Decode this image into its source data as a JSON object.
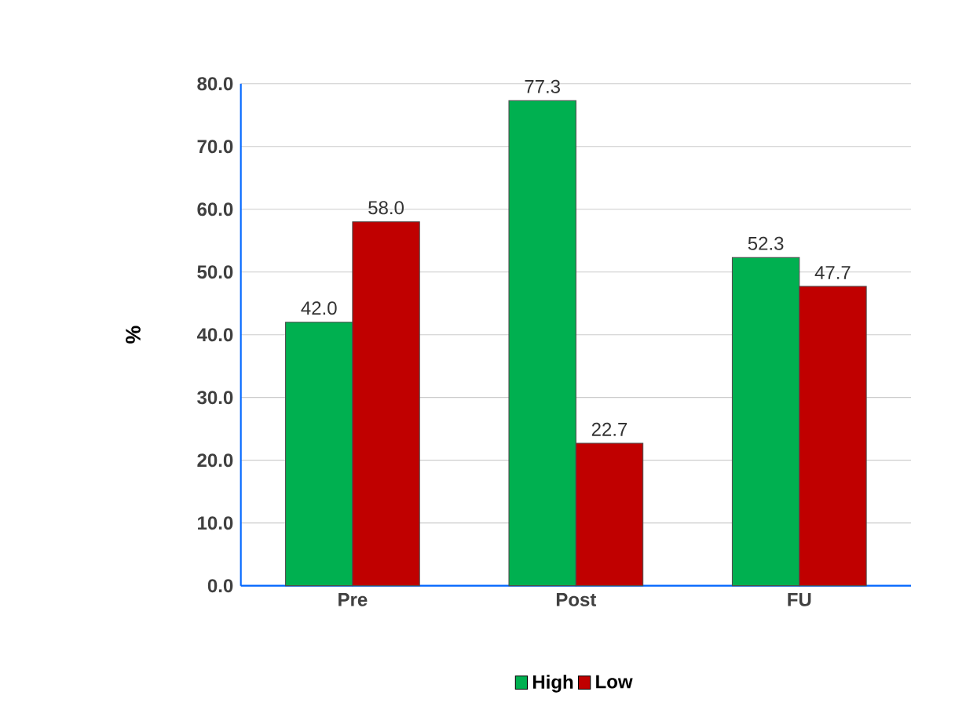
{
  "chart_data": {
    "type": "bar",
    "ylabel": "%",
    "categories": [
      "Pre",
      "Post",
      "FU"
    ],
    "series": [
      {
        "name": "High",
        "color": "#00b050",
        "values": [
          42.0,
          77.3,
          52.3
        ],
        "value_labels": [
          "42.0",
          "77.3",
          "52.3"
        ]
      },
      {
        "name": "Low",
        "color": "#c00000",
        "values": [
          58.0,
          22.7,
          47.7
        ],
        "value_labels": [
          "58.0",
          "22.7",
          "47.7"
        ]
      }
    ],
    "ylim": [
      0,
      80
    ],
    "yticks": [
      {
        "value": 0,
        "label": "0.0"
      },
      {
        "value": 10,
        "label": "10.0"
      },
      {
        "value": 20,
        "label": "20.0"
      },
      {
        "value": 30,
        "label": "30.0"
      },
      {
        "value": 40,
        "label": "40.0"
      },
      {
        "value": 50,
        "label": "50.0"
      },
      {
        "value": 60,
        "label": "60.0"
      },
      {
        "value": 70,
        "label": "70.0"
      },
      {
        "value": 80,
        "label": "80.0"
      }
    ],
    "grid": "y",
    "legend": "bottom"
  }
}
